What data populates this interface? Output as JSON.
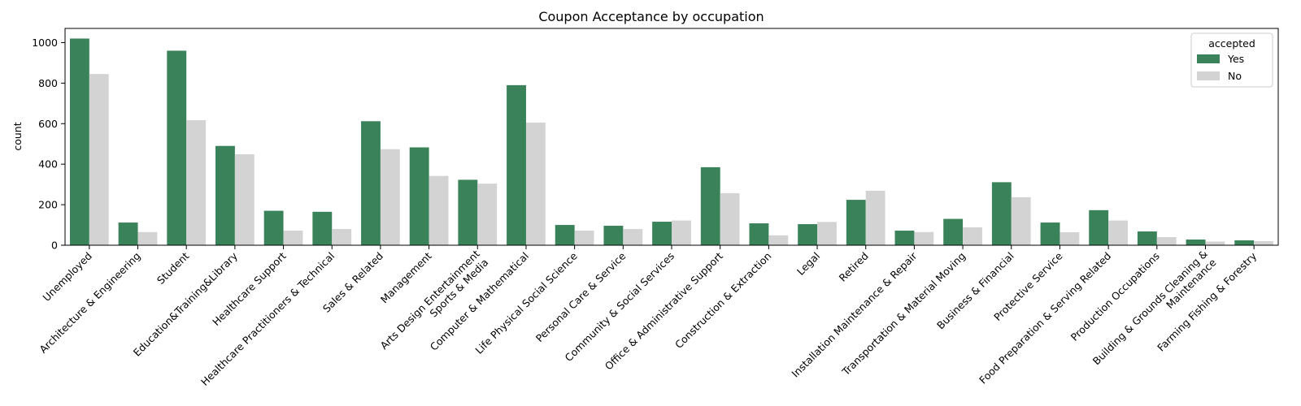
{
  "chart_data": {
    "type": "bar",
    "title": "Coupon Acceptance by occupation",
    "xlabel": "",
    "ylabel": "count",
    "ylim": [
      0,
      1070
    ],
    "yticks": [
      0,
      200,
      400,
      600,
      800,
      1000
    ],
    "grid": false,
    "legend_position": "top-right",
    "legend_title": "accepted",
    "categories": [
      "Unemployed",
      "Architecture & Engineering",
      "Student",
      "Education&Training&Library",
      "Healthcare Support",
      "Healthcare Practitioners & Technical",
      "Sales & Related",
      "Management",
      "Arts Design Entertainment Sports & Media",
      "Computer & Mathematical",
      "Life Physical Social Science",
      "Personal Care & Service",
      "Community & Social Services",
      "Office & Administrative Support",
      "Construction & Extraction",
      "Legal",
      "Retired",
      "Installation Maintenance & Repair",
      "Transportation & Material Moving",
      "Business & Financial",
      "Protective Service",
      "Food Preparation & Serving Related",
      "Production Occupations",
      "Building & Grounds Cleaning & Maintenance",
      "Farming Fishing & Forestry"
    ],
    "series": [
      {
        "name": "Yes",
        "color": "#3a8259",
        "values": [
          1020,
          112,
          960,
          490,
          170,
          165,
          612,
          483,
          323,
          790,
          100,
          96,
          116,
          385,
          108,
          104,
          224,
          72,
          130,
          311,
          112,
          173,
          68,
          28,
          24
        ]
      },
      {
        "name": "No",
        "color": "#d3d3d3",
        "values": [
          845,
          65,
          617,
          449,
          72,
          80,
          474,
          342,
          304,
          605,
          72,
          80,
          122,
          257,
          49,
          115,
          269,
          65,
          88,
          237,
          64,
          122,
          40,
          18,
          20
        ]
      }
    ]
  }
}
